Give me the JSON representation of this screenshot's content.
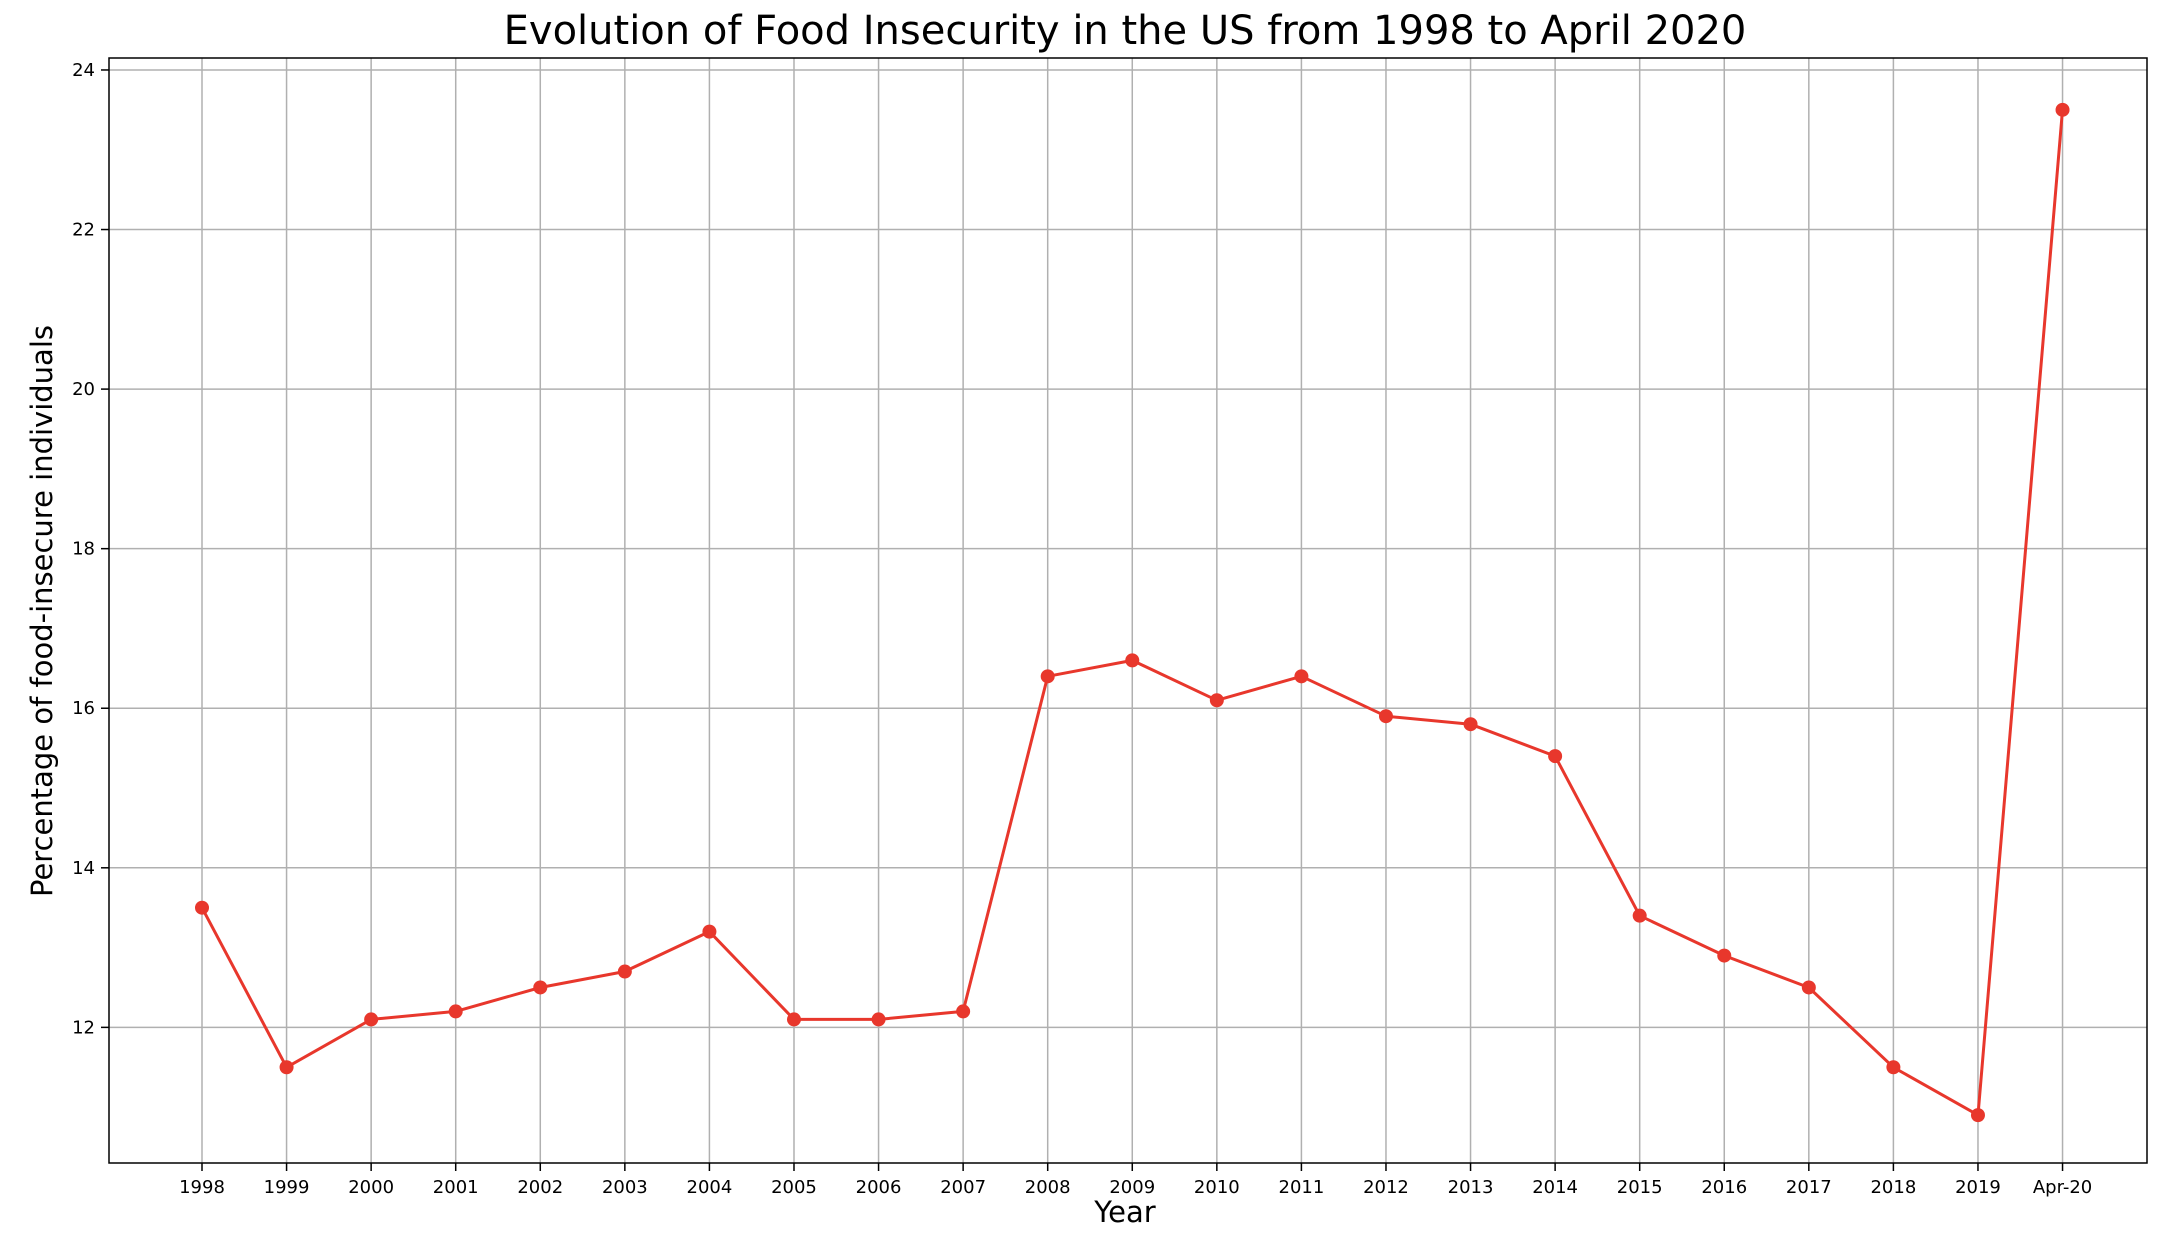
{
  "chart_data": {
    "type": "line",
    "title": "Evolution of Food Insecurity in the US from 1998 to April 2020",
    "xlabel": "Year",
    "ylabel": "Percentage of food-insecure individuals",
    "categories": [
      "1998",
      "1999",
      "2000",
      "2001",
      "2002",
      "2003",
      "2004",
      "2005",
      "2006",
      "2007",
      "2008",
      "2009",
      "2010",
      "2011",
      "2012",
      "2013",
      "2014",
      "2015",
      "2016",
      "2017",
      "2018",
      "2019",
      "Apr-20"
    ],
    "series": [
      {
        "values": [
          13.5,
          11.5,
          12.1,
          12.2,
          12.5,
          12.7,
          13.2,
          12.1,
          12.1,
          12.2,
          16.4,
          16.6,
          16.1,
          16.4,
          15.9,
          15.8,
          15.4,
          13.4,
          12.9,
          12.5,
          11.5,
          10.9,
          23.5
        ],
        "color": "#e8372c",
        "marker": "circle"
      }
    ],
    "ylim": [
      10.3,
      24.15
    ],
    "yticks": [
      12,
      14,
      16,
      18,
      20,
      22,
      24
    ],
    "grid": true,
    "legend": "none"
  }
}
